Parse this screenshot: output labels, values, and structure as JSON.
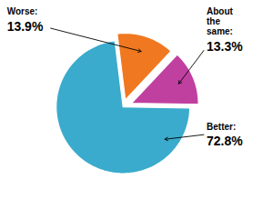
{
  "chart_data": {
    "type": "pie",
    "categories": [
      "Worse:",
      "About the same:",
      "Better:"
    ],
    "values": [
      13.9,
      13.3,
      72.8
    ],
    "value_labels": [
      "13.9%",
      "13.3%",
      "72.8%"
    ],
    "colors": [
      "#F07820",
      "#C040A0",
      "#3AABCC"
    ],
    "data_labels": true
  }
}
